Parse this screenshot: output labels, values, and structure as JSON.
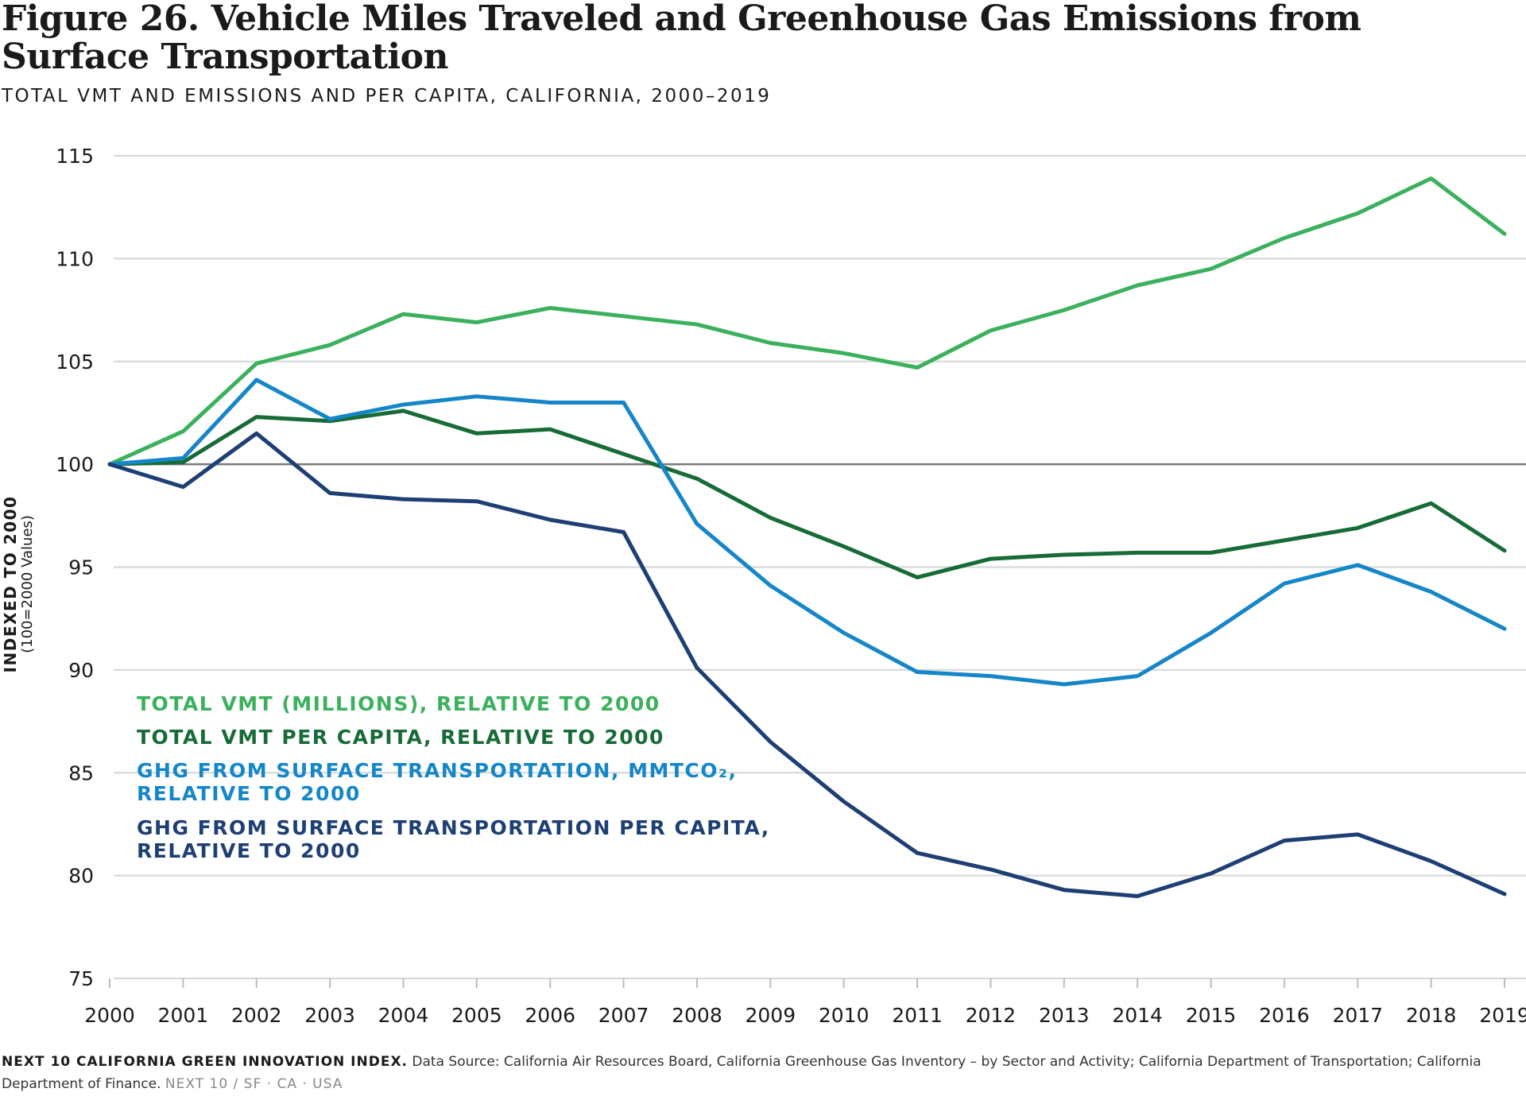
{
  "title": "Figure 26. Vehicle Miles Traveled and Greenhouse Gas Emissions from Surface Transportation",
  "subtitle": "TOTAL VMT AND EMISSIONS AND PER CAPITA, CALIFORNIA, 2000–2019",
  "footer": {
    "brand": "NEXT 10 CALIFORNIA GREEN INNOVATION INDEX.",
    "source": "Data Source: California Air Resources Board, California Greenhouse Gas Inventory – by Sector and Activity; California Department of Transportation; California Department of Finance.",
    "location": "NEXT 10 / SF · CA · USA"
  },
  "chart_data": {
    "type": "line",
    "ylabel": "INDEXED TO 2000",
    "ylabel_sub": "(100=2000 Values)",
    "ylim": [
      75,
      115
    ],
    "yticks": [
      75,
      80,
      85,
      90,
      95,
      100,
      105,
      110,
      115
    ],
    "reference_line": 100,
    "grid": true,
    "x": [
      "2000",
      "2001",
      "2002",
      "2003",
      "2004",
      "2005",
      "2006",
      "2007",
      "2008",
      "2009",
      "2010",
      "2011",
      "2012",
      "2013",
      "2014",
      "2015",
      "2016",
      "2017",
      "2018",
      "2019"
    ],
    "series": [
      {
        "name": "TOTAL VMT (MILLIONS), RELATIVE TO 2000",
        "color": "#3bb15d",
        "values": [
          100,
          101.6,
          104.9,
          105.8,
          107.3,
          106.9,
          107.6,
          107.2,
          106.8,
          105.9,
          105.4,
          104.7,
          106.5,
          107.5,
          108.7,
          109.5,
          111.0,
          112.2,
          113.9,
          111.2
        ]
      },
      {
        "name": "TOTAL VMT PER CAPITA, RELATIVE TO 2000",
        "color": "#176b36",
        "values": [
          100,
          100.1,
          102.3,
          102.1,
          102.6,
          101.5,
          101.7,
          100.5,
          99.3,
          97.4,
          96.0,
          94.5,
          95.4,
          95.6,
          95.7,
          95.7,
          96.3,
          96.9,
          98.1,
          95.8
        ]
      },
      {
        "name": "GHG FROM SURFACE TRANSPORTATION, MMTCO₂, RELATIVE TO 2000",
        "label_lines": [
          "GHG FROM SURFACE TRANSPORTATION, MMTCO₂,",
          "RELATIVE TO 2000"
        ],
        "color": "#1586c7",
        "values": [
          100,
          100.3,
          104.1,
          102.2,
          102.9,
          103.3,
          103.0,
          103.0,
          97.1,
          94.1,
          91.8,
          89.9,
          89.7,
          89.3,
          89.7,
          91.8,
          94.2,
          95.1,
          93.8,
          92.0
        ]
      },
      {
        "name": "GHG FROM SURFACE TRANSPORTATION PER CAPITA, RELATIVE TO 2000",
        "label_lines": [
          "GHG FROM SURFACE TRANSPORTATION PER CAPITA,",
          "RELATIVE TO 2000"
        ],
        "color": "#1d3f73",
        "values": [
          100,
          98.9,
          101.5,
          98.6,
          98.3,
          98.2,
          97.3,
          96.7,
          90.1,
          86.5,
          83.6,
          81.1,
          80.3,
          79.3,
          79.0,
          80.1,
          81.7,
          82.0,
          80.7,
          79.1
        ]
      }
    ],
    "legend_placement": "lower-left"
  }
}
